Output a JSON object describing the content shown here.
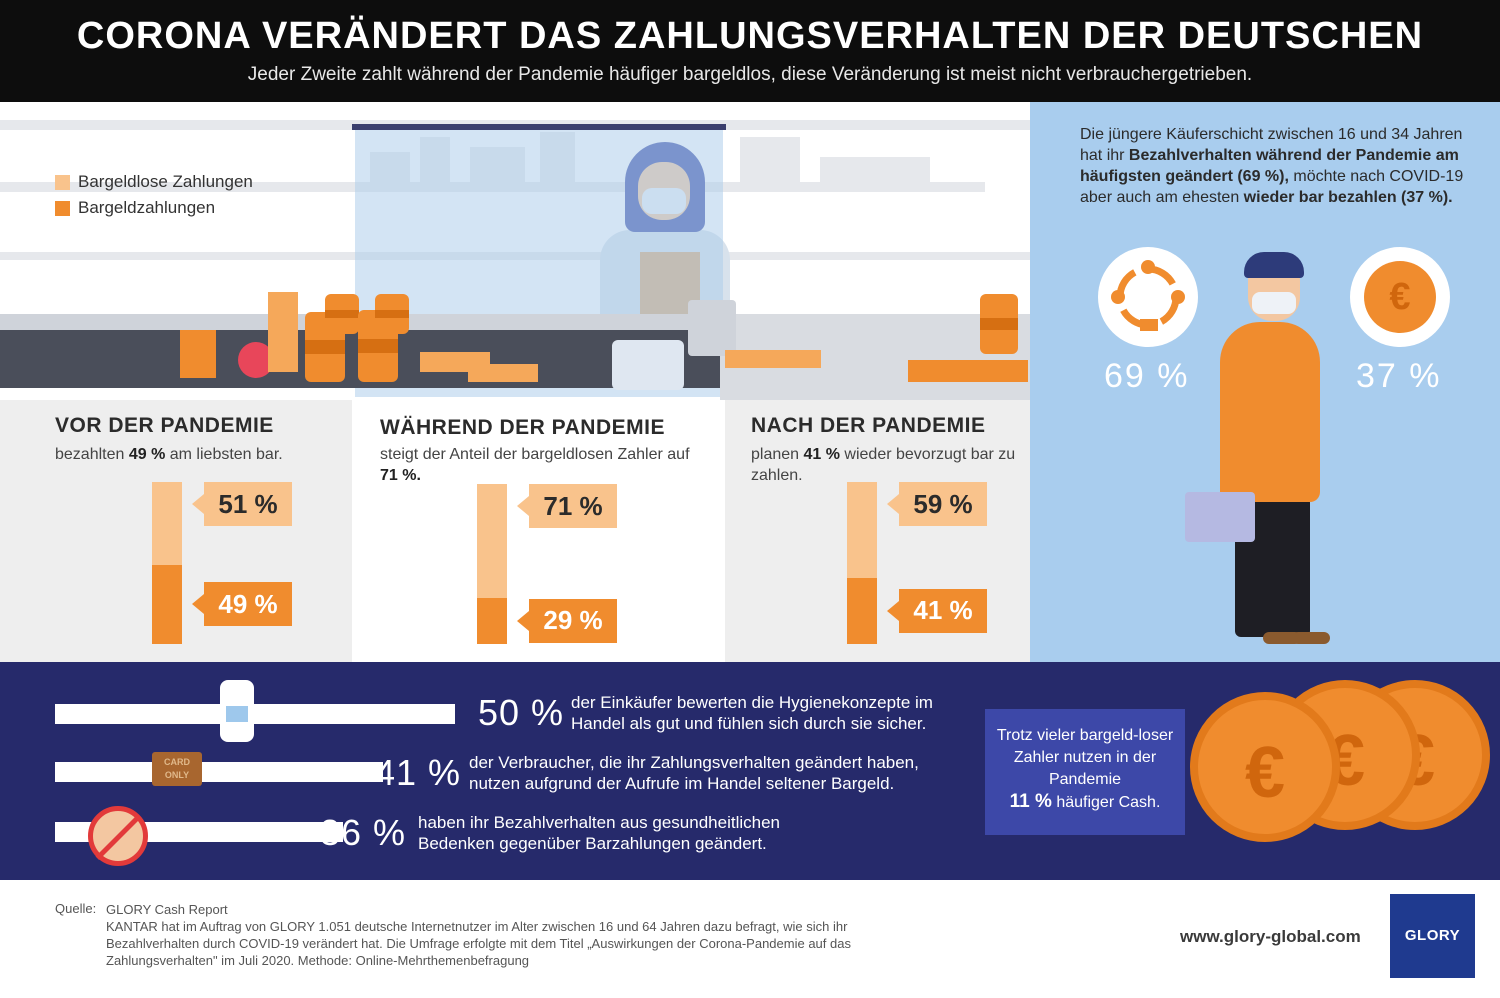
{
  "header": {
    "title": "CORONA VERÄNDERT DAS ZAHLUNGSVERHALTEN DER DEUTSCHEN",
    "subtitle": "Jeder Zweite zahlt während der Pandemie häufiger bargeldlos, diese Veränderung ist meist nicht verbrauchergetrieben."
  },
  "colors": {
    "cashless": "#f9c38c",
    "cash": "#f08c2e",
    "navy": "#262a6b",
    "lightblue": "#a9cdee"
  },
  "legend": {
    "items": [
      {
        "label": "Bargeldlose Zahlungen",
        "color": "#f9c38c"
      },
      {
        "label": "Bargeldzahlungen",
        "color": "#f08c2e"
      }
    ]
  },
  "chart_data": {
    "type": "bar",
    "categories": [
      "VOR DER PANDEMIE",
      "WÄHREND DER PANDEMIE",
      "NACH DER PANDEMIE"
    ],
    "series": [
      {
        "name": "Bargeldlose Zahlungen",
        "values": [
          51,
          71,
          59
        ]
      },
      {
        "name": "Bargeldzahlungen",
        "values": [
          49,
          29,
          41
        ]
      }
    ],
    "labels": {
      "cashless": [
        "51 %",
        "71 %",
        "59 %"
      ],
      "cash": [
        "49 %",
        "29 %",
        "41 %"
      ]
    },
    "ylim": [
      0,
      100
    ],
    "stacked": true,
    "legend": "top-left"
  },
  "panels": [
    {
      "title": "VOR DER PANDEMIE",
      "desc_pre": "bezahlten ",
      "desc_bold": "49 %",
      "desc_post": " am liebsten bar."
    },
    {
      "title": "WÄHREND DER PANDEMIE",
      "desc_pre": "steigt der Anteil der bargeldlosen Zahler auf ",
      "desc_bold": "71 %.",
      "desc_post": ""
    },
    {
      "title": "NACH DER PANDEMIE",
      "desc_pre": "planen ",
      "desc_bold": "41 %",
      "desc_post": " wieder bevorzugt bar zu zahlen."
    }
  ],
  "young": {
    "t1": "Die jüngere Käuferschicht zwischen 16 und 34 Jahren hat ihr ",
    "t2": "Bezahlverhalten während der Pandemie am häufigsten geändert (69 %),",
    "t3": " möchte nach COVID-19 aber auch am ehesten ",
    "t4": "wieder bar bezahlen (37 %).",
    "pct_left": "69 %",
    "pct_right": "37 %",
    "euro": "€"
  },
  "stats": [
    {
      "num": "50 %",
      "text": "der Einkäufer bewerten die Hygienekonzepte im Handel als gut und fühlen sich durch sie sicher.",
      "value": 50
    },
    {
      "num": "41 %",
      "text": "der Verbraucher, die ihr Zahlungsverhalten geändert haben, nutzen aufgrund der Aufrufe im Handel seltener Bargeld.",
      "value": 41
    },
    {
      "num": "36 %",
      "text": "haben ihr Bezahlverhalten aus gesundheitlichen Bedenken gegenüber Barzahlungen geändert.",
      "value": 36
    }
  ],
  "sign": {
    "line1": "CARD",
    "line2": "ONLY"
  },
  "cash_box": {
    "text": "Trotz vieler bargeld-loser Zahler nutzen in der Pandemie",
    "bold": "11 %",
    "text2": " häufiger Cash."
  },
  "coin_symbol": "€",
  "footer": {
    "source_label": "Quelle:",
    "source_title": "GLORY Cash Report",
    "source_text": "KANTAR hat im Auftrag von GLORY 1.051 deutsche Internetnutzer im Alter zwischen 16 und 64 Jahren dazu befragt, wie sich ihr Bezahlverhalten durch COVID-19 verändert hat. Die Umfrage erfolgte mit dem Titel „Auswirkungen der Corona-Pandemie auf das Zahlungsverhalten\" im Juli 2020. Methode: Online-Mehrthemenbefragung",
    "url": "www.glory-global.com",
    "logo": "GLORY"
  }
}
